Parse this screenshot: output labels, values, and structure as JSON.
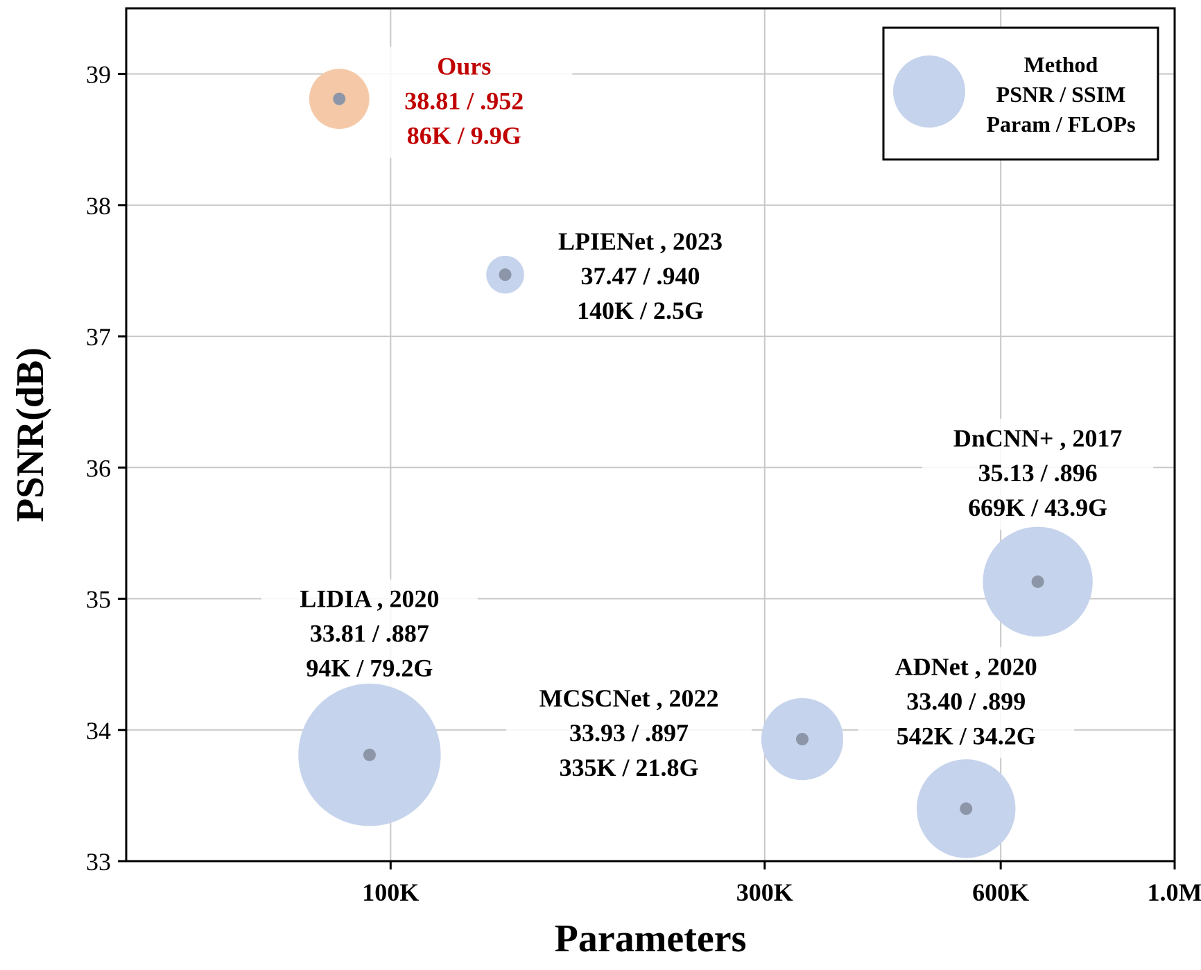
{
  "chart_data": {
    "type": "scatter",
    "xlabel": "Parameters",
    "ylabel": "PSNR(dB)",
    "x_scale": "log",
    "xlim": [
      46000,
      1000000
    ],
    "ylim": [
      33,
      39.5
    ],
    "x_ticks": [
      {
        "value": 100000,
        "label": "100K"
      },
      {
        "value": 300000,
        "label": "300K"
      },
      {
        "value": 600000,
        "label": "600K"
      },
      {
        "value": 1000000,
        "label": "1.0M"
      }
    ],
    "y_ticks": [
      {
        "value": 33,
        "label": "33"
      },
      {
        "value": 34,
        "label": "34"
      },
      {
        "value": 35,
        "label": "35"
      },
      {
        "value": 36,
        "label": "36"
      },
      {
        "value": 37,
        "label": "37"
      },
      {
        "value": 38,
        "label": "38"
      },
      {
        "value": 39,
        "label": "39"
      }
    ],
    "grid": true,
    "bubble_size_encodes": "FLOPs",
    "legend": {
      "position": "top-right",
      "lines": [
        "Method",
        "PSNR / SSIM",
        "Param / FLOPs"
      ]
    },
    "points": [
      {
        "method": "Ours",
        "params": 86000,
        "psnr": 38.81,
        "ssim": ".952",
        "flops": 9.9,
        "lines": [
          "Ours",
          "38.81 / .952",
          "86K / 9.9G"
        ],
        "color": "#f5c9a8",
        "label_color": "#c00000"
      },
      {
        "method": "LPIENet",
        "year": "2023",
        "params": 140000,
        "psnr": 37.47,
        "ssim": ".940",
        "flops": 2.5,
        "lines": [
          "LPIENet , 2023",
          "37.47 / .940",
          "140K / 2.5G"
        ],
        "color": "#c5d3ec",
        "label_color": "#000000"
      },
      {
        "method": "DnCNN+",
        "year": "2017",
        "params": 669000,
        "psnr": 35.13,
        "ssim": ".896",
        "flops": 43.9,
        "lines": [
          "DnCNN+ , 2017",
          "35.13 / .896",
          "669K / 43.9G"
        ],
        "color": "#c5d3ec",
        "label_color": "#000000"
      },
      {
        "method": "LIDIA",
        "year": "2020",
        "params": 94000,
        "psnr": 33.81,
        "ssim": ".887",
        "flops": 79.2,
        "lines": [
          "LIDIA , 2020",
          "33.81 / .887",
          "94K / 79.2G"
        ],
        "color": "#c5d3ec",
        "label_color": "#000000"
      },
      {
        "method": "MCSCNet",
        "year": "2022",
        "params": 335000,
        "psnr": 33.93,
        "ssim": ".897",
        "flops": 21.8,
        "lines": [
          "MCSCNet , 2022",
          "33.93 / .897",
          "335K / 21.8G"
        ],
        "color": "#c5d3ec",
        "label_color": "#000000"
      },
      {
        "method": "ADNet",
        "year": "2020",
        "params": 542000,
        "psnr": 33.4,
        "ssim": ".899",
        "flops": 34.2,
        "lines": [
          "ADNet , 2020",
          "33.40 / .899",
          "542K / 34.2G"
        ],
        "color": "#c5d3ec",
        "label_color": "#000000"
      }
    ]
  }
}
